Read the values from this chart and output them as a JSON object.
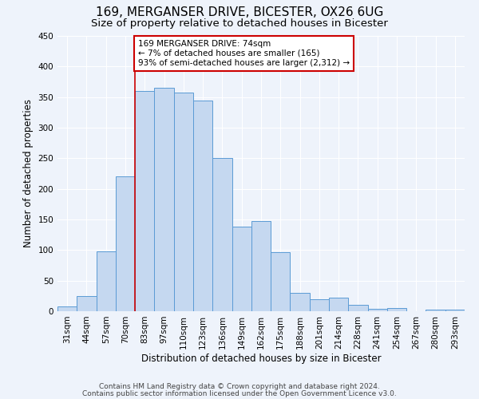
{
  "title": "169, MERGANSER DRIVE, BICESTER, OX26 6UG",
  "subtitle": "Size of property relative to detached houses in Bicester",
  "xlabel": "Distribution of detached houses by size in Bicester",
  "ylabel": "Number of detached properties",
  "bar_labels": [
    "31sqm",
    "44sqm",
    "57sqm",
    "70sqm",
    "83sqm",
    "97sqm",
    "110sqm",
    "123sqm",
    "136sqm",
    "149sqm",
    "162sqm",
    "175sqm",
    "188sqm",
    "201sqm",
    "214sqm",
    "228sqm",
    "241sqm",
    "254sqm",
    "267sqm",
    "280sqm",
    "293sqm"
  ],
  "bar_values": [
    8,
    25,
    98,
    220,
    360,
    365,
    358,
    345,
    250,
    138,
    148,
    96,
    30,
    20,
    22,
    10,
    4,
    5,
    0,
    3,
    2
  ],
  "bar_color": "#c5d8f0",
  "bar_edge_color": "#5b9bd5",
  "vline_color": "#cc0000",
  "annotation_text": "169 MERGANSER DRIVE: 74sqm\n← 7% of detached houses are smaller (165)\n93% of semi-detached houses are larger (2,312) →",
  "annotation_box_color": "#ffffff",
  "annotation_box_edge_color": "#cc0000",
  "ylim": [
    0,
    450
  ],
  "yticks": [
    0,
    50,
    100,
    150,
    200,
    250,
    300,
    350,
    400,
    450
  ],
  "footer_line1": "Contains HM Land Registry data © Crown copyright and database right 2024.",
  "footer_line2": "Contains public sector information licensed under the Open Government Licence v3.0.",
  "bg_color": "#eef3fb",
  "grid_color": "#ffffff",
  "title_fontsize": 11,
  "subtitle_fontsize": 9.5,
  "axis_label_fontsize": 8.5,
  "tick_fontsize": 7.5,
  "footer_fontsize": 6.5,
  "annot_fontsize": 7.5
}
